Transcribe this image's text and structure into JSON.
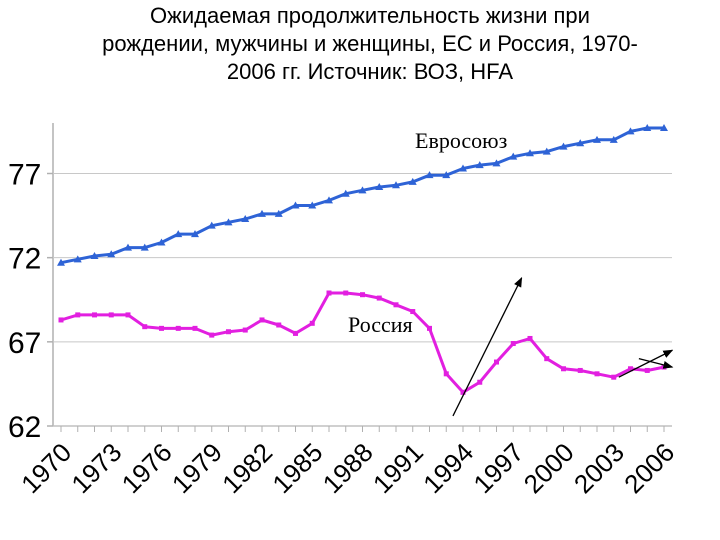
{
  "chart_data": {
    "type": "line",
    "title_lines": [
      "Ожидаемая продолжительность жизни при",
      "рождении, мужчины и женщины, ЕС и Россия, 1970-",
      "2006 гг. Источник: ВОЗ, HFA"
    ],
    "xlabel": "",
    "ylabel": "",
    "x": [
      1970,
      1971,
      1972,
      1973,
      1974,
      1975,
      1976,
      1977,
      1978,
      1979,
      1980,
      1981,
      1982,
      1983,
      1984,
      1985,
      1986,
      1987,
      1988,
      1989,
      1990,
      1991,
      1992,
      1993,
      1994,
      1995,
      1996,
      1997,
      1998,
      1999,
      2000,
      2001,
      2002,
      2003,
      2004,
      2005,
      2006
    ],
    "x_tick_labels": [
      "1970",
      "1973",
      "1976",
      "1979",
      "1982",
      "1985",
      "1988",
      "1991",
      "1994",
      "1997",
      "2000",
      "2003",
      "2006"
    ],
    "y_ticks": [
      62,
      67,
      72,
      77
    ],
    "ylim": [
      62,
      80
    ],
    "series": [
      {
        "name": "Евросоюз",
        "color": "#2e63d6",
        "marker": "triangle",
        "values": [
          71.7,
          71.9,
          72.1,
          72.2,
          72.6,
          72.6,
          72.9,
          73.4,
          73.4,
          73.9,
          74.1,
          74.3,
          74.6,
          74.6,
          75.1,
          75.1,
          75.4,
          75.8,
          76.0,
          76.2,
          76.3,
          76.5,
          76.9,
          76.9,
          77.3,
          77.5,
          77.6,
          78.0,
          78.2,
          78.3,
          78.6,
          78.8,
          79.0,
          79.0,
          79.5,
          79.7,
          79.7
        ]
      },
      {
        "name": "Россия",
        "color": "#e21fe0",
        "marker": "square",
        "values": [
          68.3,
          68.6,
          68.6,
          68.6,
          68.6,
          67.9,
          67.8,
          67.8,
          67.8,
          67.4,
          67.6,
          67.7,
          68.3,
          68.0,
          67.5,
          68.1,
          69.9,
          69.9,
          69.8,
          69.6,
          69.2,
          68.8,
          67.8,
          65.1,
          64.0,
          64.6,
          65.8,
          66.9,
          67.2,
          66.0,
          65.4,
          65.3,
          65.1,
          64.9,
          65.4,
          65.3,
          65.5
        ]
      }
    ],
    "series_labels": [
      "Евросоюз",
      "Россия"
    ],
    "annotations": [
      {
        "type": "trend-arrow",
        "from": [
          1993.4,
          62.6
        ],
        "to": [
          1997.5,
          70.8
        ]
      },
      {
        "type": "trend-arrow",
        "from": [
          2003.3,
          64.9
        ],
        "to": [
          2006.5,
          66.5
        ]
      },
      {
        "type": "trend-arrow",
        "from": [
          2004.5,
          66.0
        ],
        "to": [
          2006.5,
          65.5
        ]
      }
    ]
  }
}
